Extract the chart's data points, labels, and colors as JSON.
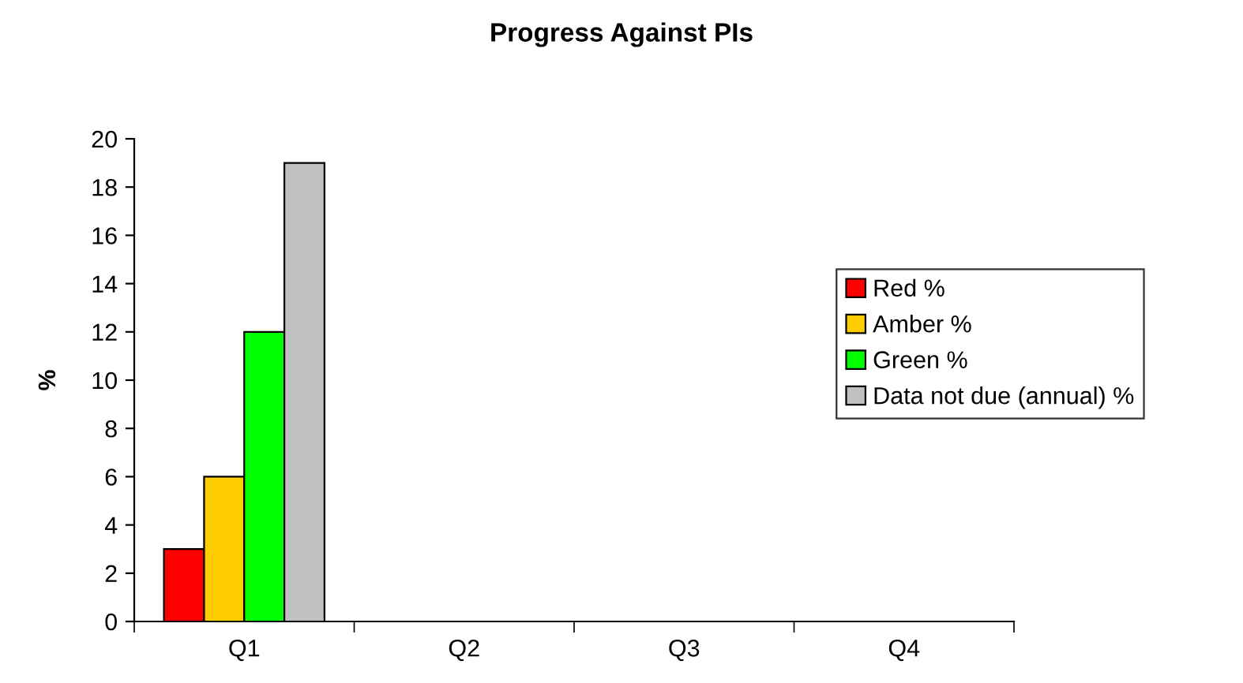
{
  "chart_data": {
    "type": "bar",
    "title": "Progress Against PIs",
    "ylabel": "%",
    "categories": [
      "Q1",
      "Q2",
      "Q3",
      "Q4"
    ],
    "series": [
      {
        "name": "Red %",
        "color": "#ff0000",
        "values": [
          3,
          null,
          null,
          null
        ]
      },
      {
        "name": "Amber %",
        "color": "#ffcc00",
        "values": [
          6,
          null,
          null,
          null
        ]
      },
      {
        "name": "Green %",
        "color": "#00ff00",
        "values": [
          12,
          null,
          null,
          null
        ]
      },
      {
        "name": "Data not due (annual) %",
        "color": "#c0c0c0",
        "values": [
          19,
          null,
          null,
          null
        ]
      }
    ],
    "ylim": [
      0,
      20
    ],
    "yticks": [
      0,
      2,
      4,
      6,
      8,
      10,
      12,
      14,
      16,
      18,
      20
    ],
    "grid": false,
    "legend": "right"
  }
}
